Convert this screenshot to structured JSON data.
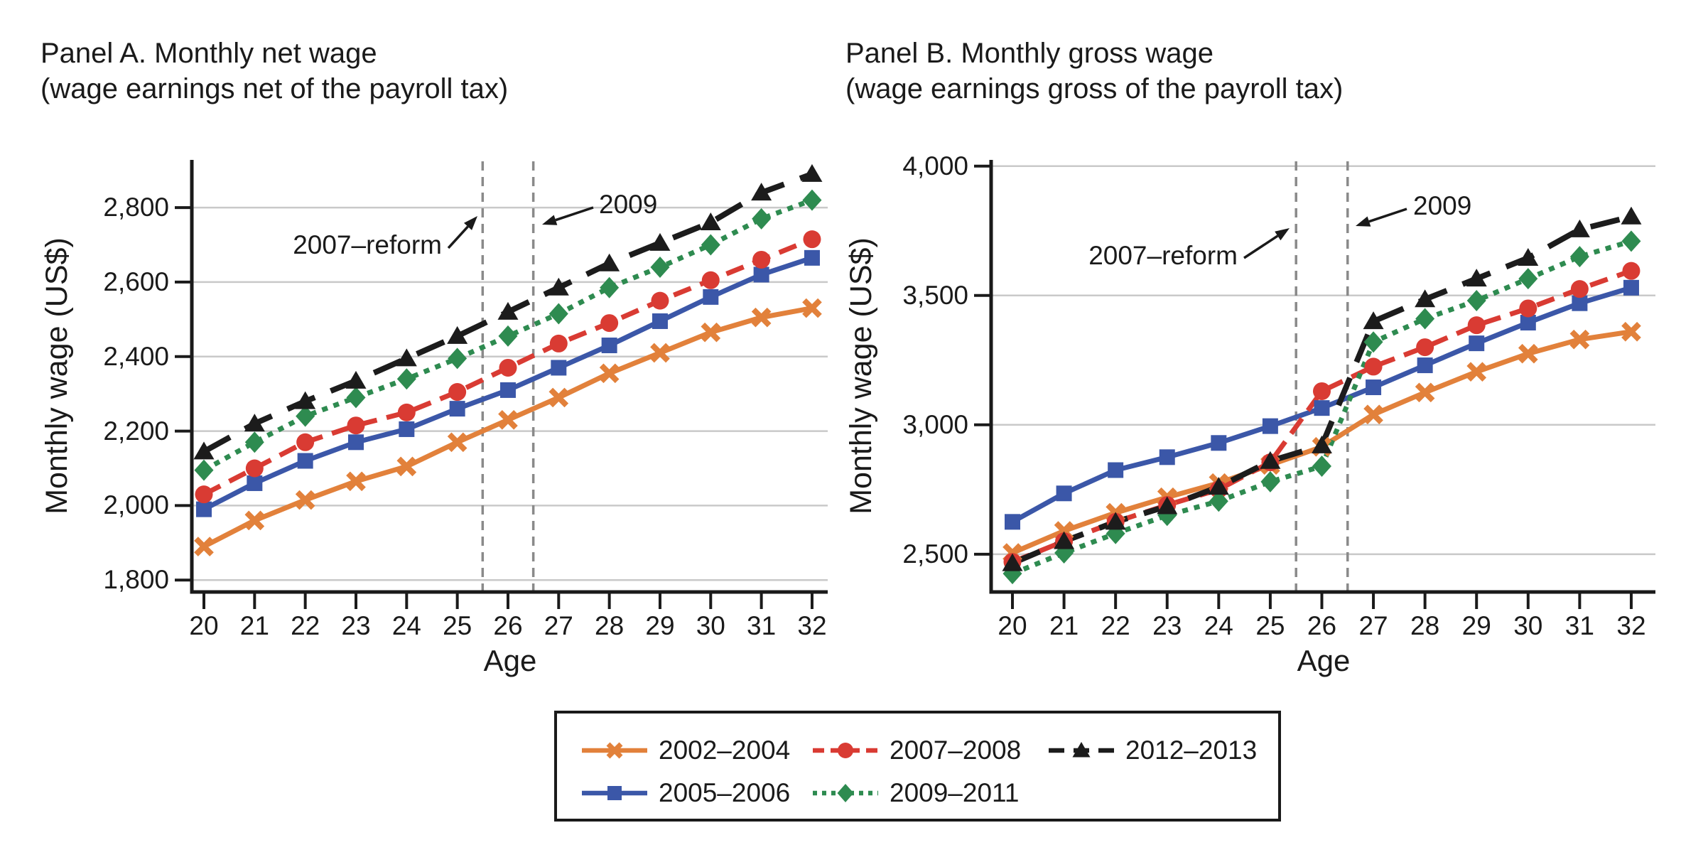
{
  "figure": {
    "background": "#FFFFFF",
    "text_color": "#1A1A1A",
    "grid_color": "#C9C9C9",
    "vline_color": "#8A8A8A"
  },
  "chart_data": [
    {
      "type": "line",
      "panel": "A",
      "title": "Panel A. Monthly net wage",
      "subtitle": "(wage earnings net of the payroll tax)",
      "xlabel": "Age",
      "ylabel": "Monthly wage (US$)",
      "grid": true,
      "legend_position": "bottom-center-shared",
      "x": [
        20,
        21,
        22,
        23,
        24,
        25,
        26,
        27,
        28,
        29,
        30,
        31,
        32
      ],
      "xtick_labels": [
        "20",
        "21",
        "22",
        "23",
        "24",
        "25",
        "26",
        "27",
        "28",
        "29",
        "30",
        "31",
        "32"
      ],
      "yticks": [
        1800,
        2000,
        2200,
        2400,
        2600,
        2800
      ],
      "ytick_labels": [
        "1,800",
        "2,000",
        "2,200",
        "2,400",
        "2,600",
        "2,800"
      ],
      "ylim": [
        1768,
        2928
      ],
      "vlines": [
        {
          "x": 25.5,
          "annotation": "2007–reform"
        },
        {
          "x": 26.5,
          "annotation": "2009"
        }
      ],
      "series": [
        {
          "name": "2002–2004",
          "color": "#E2813B",
          "line": "solid",
          "marker": "x",
          "values": [
            1890,
            1960,
            2015,
            2065,
            2105,
            2170,
            2230,
            2290,
            2355,
            2410,
            2465,
            2505,
            2530
          ]
        },
        {
          "name": "2005–2006",
          "color": "#3B57A8",
          "line": "solid",
          "marker": "square",
          "values": [
            1990,
            2060,
            2120,
            2170,
            2205,
            2260,
            2310,
            2370,
            2430,
            2495,
            2560,
            2620,
            2665
          ]
        },
        {
          "name": "2007–2008",
          "color": "#D93B33",
          "line": "dashed",
          "marker": "circle",
          "values": [
            2030,
            2100,
            2170,
            2215,
            2250,
            2305,
            2370,
            2435,
            2490,
            2550,
            2605,
            2660,
            2715
          ]
        },
        {
          "name": "2009–2011",
          "color": "#2E8B50",
          "line": "dotted",
          "marker": "diamond",
          "values": [
            2095,
            2170,
            2240,
            2290,
            2340,
            2395,
            2455,
            2515,
            2585,
            2640,
            2700,
            2770,
            2820
          ]
        },
        {
          "name": "2012–2013",
          "color": "#1C1C1C",
          "line": "longdash",
          "marker": "triangle",
          "values": [
            2145,
            2220,
            2280,
            2335,
            2395,
            2455,
            2520,
            2585,
            2650,
            2705,
            2760,
            2840,
            2890
          ]
        }
      ]
    },
    {
      "type": "line",
      "panel": "B",
      "title": "Panel B. Monthly gross wage",
      "subtitle": "(wage earnings gross of the payroll tax)",
      "xlabel": "Age",
      "ylabel": "Monthly wage (US$)",
      "grid": true,
      "legend_position": "bottom-center-shared",
      "x": [
        20,
        21,
        22,
        23,
        24,
        25,
        26,
        27,
        28,
        29,
        30,
        31,
        32
      ],
      "xtick_labels": [
        "20",
        "21",
        "22",
        "23",
        "24",
        "25",
        "26",
        "27",
        "28",
        "29",
        "30",
        "31",
        "32"
      ],
      "yticks": [
        2500,
        3000,
        3500,
        4000
      ],
      "ytick_labels": [
        "2,500",
        "3,000",
        "3,500",
        "4,000"
      ],
      "ylim": [
        2354,
        4024
      ],
      "vlines": [
        {
          "x": 25.5,
          "annotation": "2007–reform"
        },
        {
          "x": 26.5,
          "annotation": "2009"
        }
      ],
      "series": [
        {
          "name": "2002–2004",
          "color": "#E2813B",
          "line": "solid",
          "marker": "x",
          "values": [
            2505,
            2590,
            2660,
            2720,
            2775,
            2845,
            2915,
            3040,
            3125,
            3205,
            3275,
            3330,
            3360
          ]
        },
        {
          "name": "2005–2006",
          "color": "#3B57A8",
          "line": "solid",
          "marker": "square",
          "values": [
            2625,
            2735,
            2825,
            2875,
            2930,
            2995,
            3065,
            3145,
            3230,
            3315,
            3395,
            3470,
            3530
          ]
        },
        {
          "name": "2007–2008",
          "color": "#D93B33",
          "line": "dashed",
          "marker": "circle",
          "values": [
            2470,
            2550,
            2625,
            2690,
            2750,
            2855,
            3130,
            3225,
            3300,
            3385,
            3450,
            3525,
            3595
          ]
        },
        {
          "name": "2009–2011",
          "color": "#2E8B50",
          "line": "dotted",
          "marker": "diamond",
          "values": [
            2425,
            2505,
            2580,
            2650,
            2705,
            2780,
            2840,
            3320,
            3410,
            3480,
            3565,
            3650,
            3710
          ]
        },
        {
          "name": "2012–2013",
          "color": "#1C1C1C",
          "line": "longdash",
          "marker": "triangle",
          "values": [
            2465,
            2550,
            2625,
            2685,
            2760,
            2860,
            2920,
            3400,
            3485,
            3565,
            3645,
            3755,
            3805
          ]
        }
      ]
    }
  ],
  "legend": {
    "entries": [
      {
        "label": "2002–2004",
        "color": "#E2813B",
        "line": "solid",
        "marker": "x"
      },
      {
        "label": "2005–2006",
        "color": "#3B57A8",
        "line": "solid",
        "marker": "square"
      },
      {
        "label": "2007–2008",
        "color": "#D93B33",
        "line": "dashed",
        "marker": "circle"
      },
      {
        "label": "2009–2011",
        "color": "#2E8B50",
        "line": "dotted",
        "marker": "diamond"
      },
      {
        "label": "2012–2013",
        "color": "#1C1C1C",
        "line": "longdash",
        "marker": "triangle"
      }
    ]
  }
}
